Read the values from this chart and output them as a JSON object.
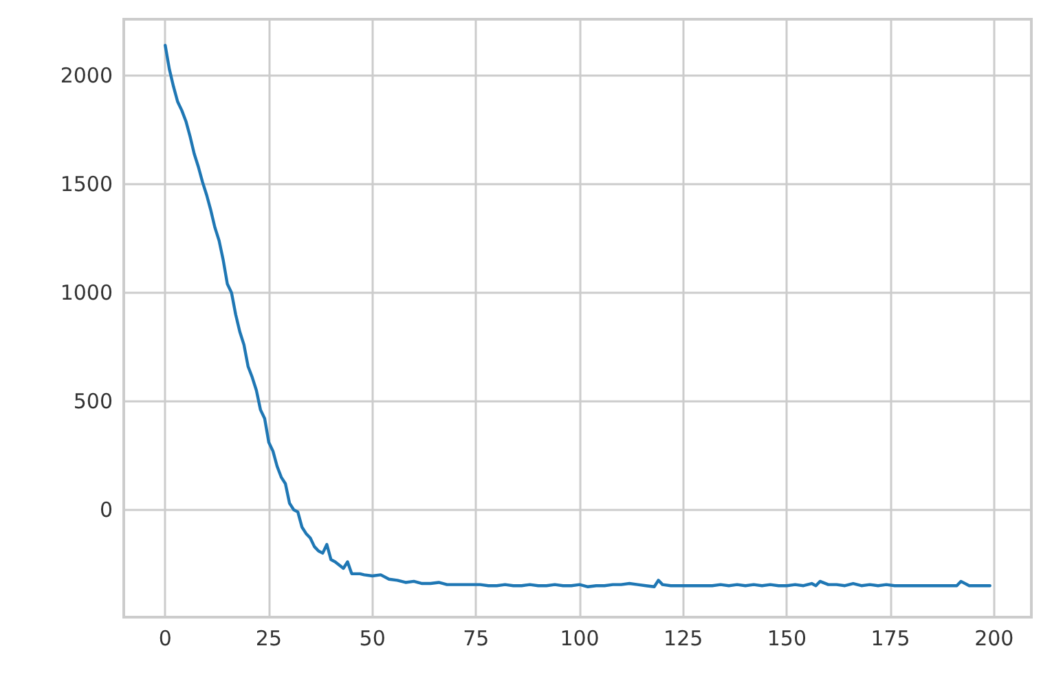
{
  "chart_data": {
    "type": "line",
    "xlim": [
      -10,
      209
    ],
    "ylim": [
      -495,
      2260
    ],
    "xticks": [
      0,
      25,
      50,
      75,
      100,
      125,
      150,
      175,
      200
    ],
    "yticks": [
      0,
      500,
      1000,
      1500,
      2000
    ],
    "grid": true,
    "x": [
      0,
      1,
      2,
      3,
      4,
      5,
      6,
      7,
      8,
      9,
      10,
      11,
      12,
      13,
      14,
      15,
      16,
      17,
      18,
      19,
      20,
      21,
      22,
      23,
      24,
      25,
      26,
      27,
      28,
      29,
      30,
      31,
      32,
      33,
      34,
      35,
      36,
      37,
      38,
      39,
      40,
      41,
      42,
      43,
      44,
      45,
      46,
      47,
      48,
      50,
      52,
      54,
      56,
      58,
      60,
      62,
      64,
      66,
      68,
      70,
      72,
      74,
      76,
      78,
      80,
      82,
      84,
      86,
      88,
      90,
      92,
      94,
      96,
      98,
      100,
      102,
      104,
      106,
      108,
      110,
      112,
      114,
      116,
      118,
      119,
      120,
      122,
      124,
      126,
      128,
      130,
      132,
      134,
      136,
      138,
      140,
      142,
      144,
      146,
      148,
      150,
      152,
      154,
      156,
      157,
      158,
      160,
      162,
      164,
      166,
      168,
      170,
      172,
      174,
      176,
      178,
      180,
      182,
      184,
      186,
      188,
      190,
      191,
      192,
      194,
      196,
      198,
      199
    ],
    "series": [
      {
        "color": "#1f77b4",
        "values": [
          2140,
          2030,
          1950,
          1880,
          1840,
          1790,
          1720,
          1640,
          1580,
          1510,
          1450,
          1380,
          1300,
          1240,
          1150,
          1040,
          1000,
          900,
          820,
          760,
          660,
          610,
          550,
          460,
          420,
          310,
          270,
          200,
          150,
          120,
          30,
          0,
          -10,
          -80,
          -110,
          -130,
          -170,
          -190,
          -200,
          -160,
          -230,
          -240,
          -255,
          -270,
          -240,
          -295,
          -295,
          -295,
          -300,
          -305,
          -300,
          -320,
          -325,
          -335,
          -330,
          -340,
          -340,
          -335,
          -345,
          -345,
          -345,
          -345,
          -345,
          -350,
          -350,
          -345,
          -350,
          -350,
          -345,
          -350,
          -350,
          -345,
          -350,
          -350,
          -345,
          -355,
          -350,
          -350,
          -345,
          -345,
          -340,
          -345,
          -350,
          -355,
          -325,
          -345,
          -350,
          -350,
          -350,
          -350,
          -350,
          -350,
          -345,
          -350,
          -345,
          -350,
          -345,
          -350,
          -345,
          -350,
          -350,
          -345,
          -350,
          -340,
          -350,
          -330,
          -345,
          -345,
          -350,
          -340,
          -350,
          -345,
          -350,
          -345,
          -350,
          -350,
          -350,
          -350,
          -350,
          -350,
          -350,
          -350,
          -350,
          -330,
          -350,
          -350,
          -350,
          -350
        ]
      }
    ]
  }
}
